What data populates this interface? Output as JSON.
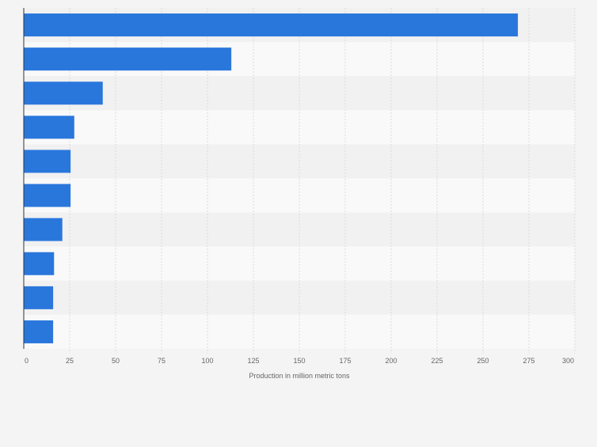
{
  "chart_data": {
    "type": "bar",
    "orientation": "horizontal",
    "title": "",
    "xlabel": "Production in million metric tons",
    "ylabel": "",
    "categories": [
      "",
      "",
      "",
      "",
      "",
      "",
      "",
      "",
      "",
      ""
    ],
    "values": [
      269,
      113,
      43,
      27.5,
      25.5,
      25.5,
      21,
      16.5,
      16,
      16
    ],
    "xlim": [
      0,
      300
    ],
    "xticks": [
      0,
      25,
      50,
      75,
      100,
      125,
      150,
      175,
      200,
      225,
      250,
      275,
      300
    ],
    "grid": true,
    "legend": "none",
    "bar_color": "#2a77dc",
    "band_colors": [
      "#f1f1f1",
      "#f9f9f9"
    ]
  }
}
